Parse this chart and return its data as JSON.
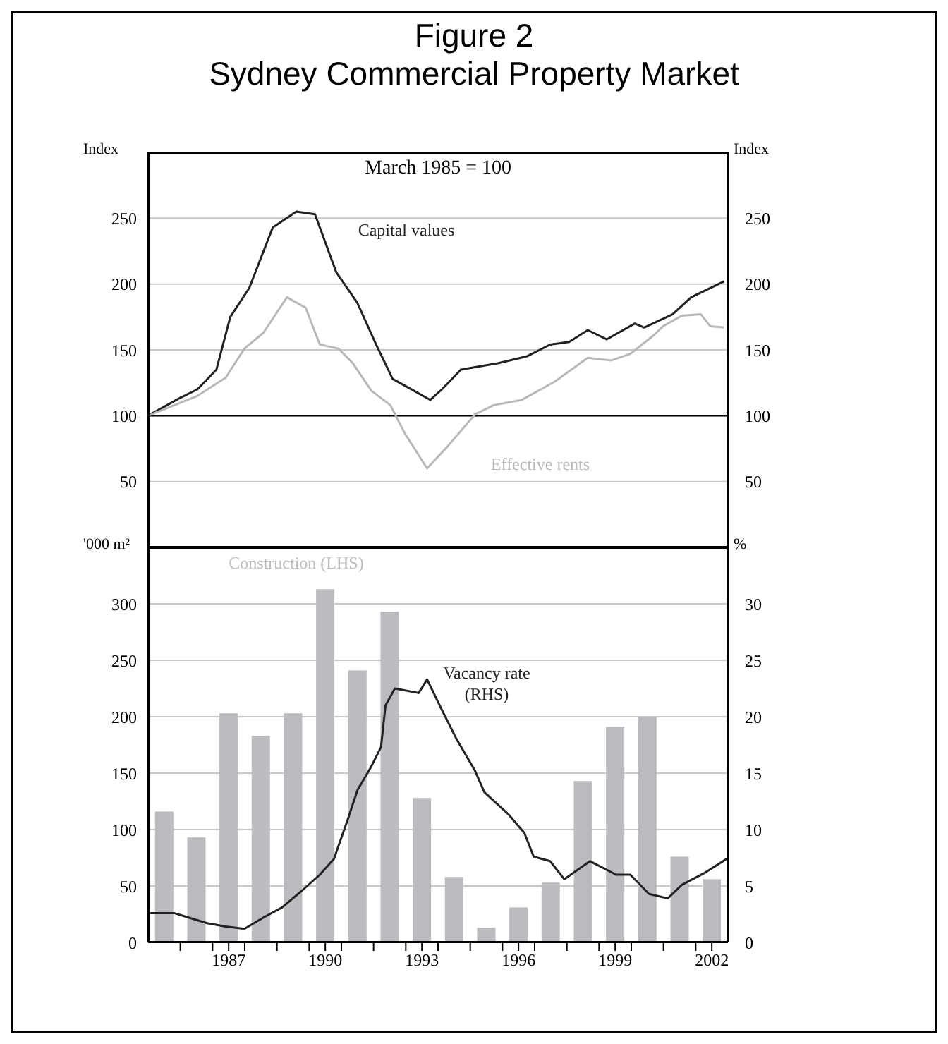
{
  "chart_data": [
    {
      "type": "line",
      "title": "Figure 2",
      "subtitle": "Sydney Commercial Property Market",
      "ylabel": "Index",
      "y2label": "Index",
      "annotations": [
        "March 1985 = 100"
      ],
      "xlim": [
        1984.5,
        2002.5
      ],
      "ylim": [
        0,
        300
      ],
      "yticks": [
        50,
        100,
        150,
        200,
        250
      ],
      "y2lim": [
        0,
        300
      ],
      "y2ticks": [
        50,
        100,
        150,
        200,
        250
      ],
      "tick_labels": "y",
      "grid": "y",
      "legend": false,
      "ref_lines": [
        {
          "axis": "y",
          "value": 100,
          "color": "#000000"
        }
      ],
      "series": [
        {
          "name": "Capital values",
          "color": "#222222",
          "x": [
            1984.5,
            1985.45,
            1986.03,
            1986.62,
            1987.05,
            1987.64,
            1988.37,
            1989.1,
            1989.68,
            1990.34,
            1990.99,
            1991.58,
            1992.09,
            1992.75,
            1993.26,
            1993.62,
            1994.21,
            1995.38,
            1996.25,
            1996.98,
            1997.57,
            1998.15,
            1998.74,
            1999.61,
            1999.9,
            2000.78,
            2001.36,
            2002.38
          ],
          "values": [
            100,
            113,
            120,
            135,
            175,
            197,
            243,
            255,
            253,
            209,
            186,
            154,
            128,
            119,
            112,
            120,
            135,
            140,
            145,
            154,
            156,
            165,
            158,
            170,
            167,
            177,
            190,
            202
          ]
        },
        {
          "name": "Effective rents",
          "color": "#b8b8b8",
          "x": [
            1984.5,
            1986.03,
            1986.91,
            1987.49,
            1988.08,
            1988.81,
            1989.39,
            1989.83,
            1990.41,
            1990.85,
            1991.43,
            1992.02,
            1992.46,
            1993.16,
            1993.77,
            1994.65,
            1995.23,
            1996.1,
            1996.84,
            1997.13,
            1998.15,
            1998.88,
            1999.47,
            2000.19,
            2000.49,
            2001.07,
            2001.66,
            2001.95,
            2002.38
          ],
          "values": [
            100,
            115,
            129,
            151,
            163,
            190,
            182,
            154,
            151,
            140,
            119,
            108,
            87,
            60,
            76,
            101,
            108,
            112,
            122,
            126,
            144,
            142,
            147,
            161,
            168,
            176,
            177,
            168,
            167
          ]
        }
      ]
    },
    {
      "type": "bar",
      "ylabel": "'000 m²",
      "y2label": "%",
      "xlim": [
        1984.5,
        2002.5
      ],
      "xticks": [
        {
          "value": 1985.5,
          "label": null
        },
        {
          "value": 1986.5,
          "label": null
        },
        1987,
        {
          "value": 1987.5,
          "label": null
        },
        {
          "value": 1988.5,
          "label": null
        },
        {
          "value": 1989.5,
          "label": null
        },
        1990,
        {
          "value": 1990.5,
          "label": null
        },
        {
          "value": 1991.5,
          "label": null
        },
        {
          "value": 1992.5,
          "label": null
        },
        1993,
        {
          "value": 1993.5,
          "label": null
        },
        {
          "value": 1994.5,
          "label": null
        },
        {
          "value": 1995.5,
          "label": null
        },
        1996,
        {
          "value": 1996.5,
          "label": null
        },
        {
          "value": 1997.5,
          "label": null
        },
        {
          "value": 1998.5,
          "label": null
        },
        1999,
        {
          "value": 1999.5,
          "label": null
        },
        {
          "value": 2000.5,
          "label": null
        },
        {
          "value": 2001.5,
          "label": null
        },
        2002
      ],
      "ylim": [
        0,
        350
      ],
      "yticks": [
        0,
        50,
        100,
        150,
        200,
        250,
        300
      ],
      "y2lim": [
        0,
        35
      ],
      "y2ticks": [
        0,
        5,
        10,
        15,
        20,
        25,
        30
      ],
      "grid": "y",
      "legend": false,
      "series": [
        {
          "name": "Construction (LHS)",
          "type": "bar",
          "color": "#bbbcc0",
          "x": [
            1985,
            1986,
            1987,
            1988,
            1989,
            1990,
            1991,
            1992,
            1993,
            1994,
            1995,
            1996,
            1997,
            1998,
            1999,
            2000,
            2001,
            2002
          ],
          "values": [
            116,
            93,
            203,
            183,
            203,
            313,
            241,
            293,
            128,
            58,
            13,
            31,
            53,
            143,
            191,
            200,
            76,
            56
          ]
        },
        {
          "name": "Vacancy rate (RHS)",
          "type": "line",
          "axis": "y2",
          "color": "#222222",
          "x": [
            1984.57,
            1985.3,
            1986.33,
            1986.91,
            1987.49,
            1988.08,
            1988.66,
            1989.24,
            1989.83,
            1990.27,
            1990.71,
            1991.0,
            1991.43,
            1991.73,
            1991.87,
            1992.16,
            1992.9,
            1993.16,
            1993.62,
            1994.06,
            1994.65,
            1994.94,
            1995.67,
            1996.18,
            1996.47,
            1996.98,
            1997.42,
            1997.72,
            1998.22,
            1999.03,
            1999.47,
            2000.05,
            2000.63,
            2001.07,
            2001.8,
            2002.46
          ],
          "values": [
            2.6,
            2.6,
            1.7,
            1.4,
            1.2,
            2.2,
            3.1,
            4.5,
            6.0,
            7.4,
            11.0,
            13.5,
            15.6,
            17.3,
            21.0,
            22.5,
            22.1,
            23.3,
            20.6,
            18.1,
            15.2,
            13.3,
            11.4,
            9.7,
            7.6,
            7.2,
            5.6,
            6.2,
            7.2,
            6.0,
            6.0,
            4.3,
            3.9,
            5.1,
            6.2,
            7.4
          ]
        }
      ]
    }
  ]
}
